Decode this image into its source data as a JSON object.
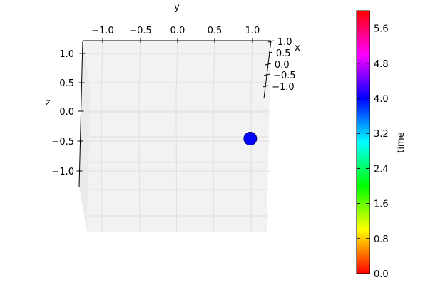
{
  "chart_data": {
    "type": "scatter",
    "projection": "3d",
    "axes": {
      "x": {
        "label": "x",
        "ticks": [
          "1.0",
          "0.5",
          "0.0",
          "−0.5",
          "−1.0"
        ],
        "range": [
          -1.2,
          1.2
        ]
      },
      "y": {
        "label": "y",
        "ticks": [
          "−1.0",
          "−0.5",
          "0.0",
          "0.5",
          "1.0"
        ],
        "range": [
          -1.25,
          1.25
        ]
      },
      "z": {
        "label": "z",
        "ticks": [
          "1.0",
          "0.5",
          "0.0",
          "−0.5",
          "−1.0"
        ],
        "range": [
          -1.25,
          1.25
        ]
      }
    },
    "points": [
      {
        "x": 0.0,
        "y": 0.97,
        "z": -0.47,
        "time": 4.3,
        "color": "#0000ff"
      }
    ],
    "colorbar": {
      "label": "time",
      "range": [
        0.0,
        6.0
      ],
      "ticks": [
        "0.0",
        "0.8",
        "1.6",
        "2.4",
        "3.2",
        "4.0",
        "4.8",
        "5.6"
      ],
      "tick_values": [
        0.0,
        0.8,
        1.6,
        2.4,
        3.2,
        4.0,
        4.8,
        5.6
      ],
      "colormap": "hsv",
      "stops": [
        "#ff0000",
        "#ffff00",
        "#00ff00",
        "#00ffff",
        "#0000ff",
        "#ff00ff",
        "#ff0000"
      ]
    },
    "grid": true
  }
}
